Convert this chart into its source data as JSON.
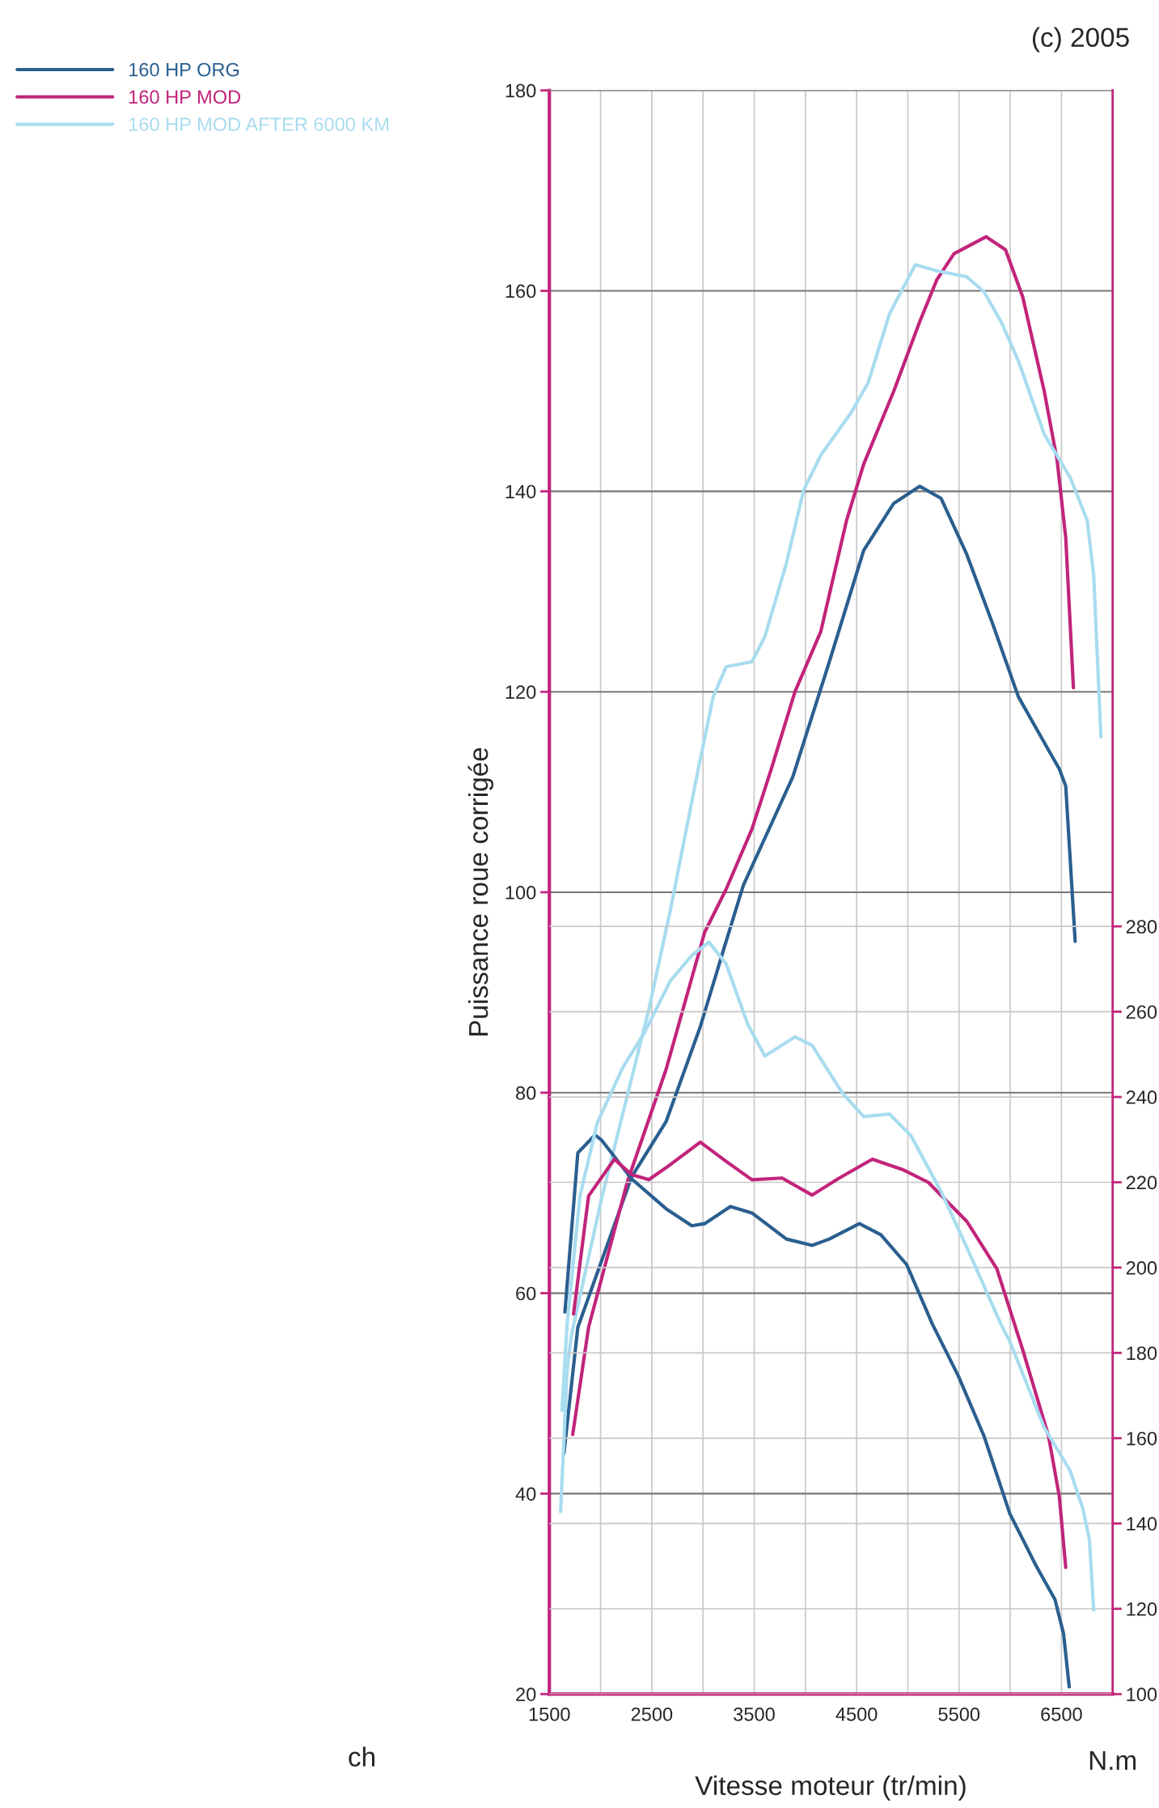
{
  "chart_data": {
    "type": "line",
    "xlabel": "Vitesse moteur (tr/min)",
    "ylabel": "Puissance roue corrigée",
    "y2label": "N.m",
    "annotations": [
      "(c) 2005",
      "ch"
    ],
    "xlim": [
      1500,
      7000
    ],
    "xticks": [
      1500,
      {
        "value": 2000,
        "label": null
      },
      2500,
      {
        "value": 3000,
        "label": null
      },
      3500,
      {
        "value": 4000,
        "label": null
      },
      4500,
      {
        "value": 5000,
        "label": null
      },
      5500,
      {
        "value": 6000,
        "label": null
      },
      6500,
      {
        "value": 7000,
        "label": null
      }
    ],
    "ylim": [
      20,
      180
    ],
    "yticks": [
      20,
      40,
      60,
      80,
      100,
      120,
      140,
      160,
      180
    ],
    "y2lim": [
      100,
      476
    ],
    "y2ticks": [
      100,
      120,
      140,
      160,
      180,
      200,
      220,
      240,
      260,
      280
    ],
    "grid": true,
    "legend": "top left",
    "marker": "none",
    "line_style": "solid",
    "series": [
      {
        "name": "160 HP ORG",
        "color": "#2a5f8f",
        "x": [
          1642,
          1778,
          2303,
          2639,
          2974,
          3226,
          3394,
          3877,
          4234,
          4569,
          4863,
          5115,
          5325,
          5576,
          5828,
          6080,
          6290,
          6479,
          6542,
          6634
        ],
        "values": [
          44,
          56.6,
          71.6,
          77.1,
          86.6,
          95.1,
          100.7,
          111.5,
          123,
          134.1,
          138.8,
          140.5,
          139.3,
          133.7,
          126.8,
          119.5,
          115.7,
          112.3,
          110.6,
          95.1
        ]
      },
      {
        "name": "160 HP MOD",
        "color": "#c2247a",
        "x": [
          1728,
          1883,
          2261,
          2639,
          3016,
          3226,
          3478,
          3667,
          3898,
          4150,
          4402,
          4569,
          4863,
          5115,
          5283,
          5451,
          5765,
          5954,
          6122,
          6332,
          6458,
          6542,
          6617
        ],
        "values": [
          45.9,
          56.6,
          71.1,
          82.3,
          96,
          100.3,
          106.3,
          112.3,
          120,
          126,
          137.1,
          142.7,
          150,
          156.9,
          161.1,
          163.7,
          165.4,
          164.1,
          159.4,
          150,
          143.1,
          135.4,
          120.4
        ]
      },
      {
        "name": "160 HP MOD AFTER 6000 KM",
        "color": "#a8dcef",
        "x": [
          1610,
          1673,
          1715,
          2009,
          2261,
          2471,
          2681,
          2954,
          3100,
          3226,
          3478,
          3604,
          3814,
          3982,
          4150,
          4443,
          4611,
          4821,
          5073,
          5283,
          5577,
          5744,
          5912,
          6080,
          6332,
          6584,
          6752,
          6815,
          6886
        ],
        "values": [
          38.2,
          52.3,
          55.8,
          69.4,
          79.7,
          88.3,
          98.2,
          112.3,
          119.5,
          122.5,
          123,
          125.5,
          132.8,
          140.1,
          143.6,
          147.8,
          150.8,
          157.7,
          162.6,
          162,
          161.4,
          159.9,
          156.9,
          153,
          145.7,
          141.4,
          137.1,
          131.6,
          115.5
        ]
      },
      {
        "axis": "y2",
        "color": "#2a5f8f",
        "x": [
          1652,
          1778,
          1946,
          2009,
          2303,
          2639,
          2891,
          3016,
          3268,
          3478,
          3814,
          4066,
          4234,
          4527,
          4737,
          4989,
          5241,
          5493,
          5744,
          5996,
          6248,
          6437,
          6521,
          6576
        ],
        "values": [
          189.6,
          226.9,
          231.1,
          229.9,
          220.8,
          213.8,
          209.8,
          210.3,
          214.3,
          212.8,
          206.7,
          205.2,
          206.7,
          210.3,
          207.7,
          200.7,
          186.7,
          174.6,
          160.5,
          142.3,
          130.3,
          122.2,
          114.1,
          101.7
        ]
      },
      {
        "axis": "y2",
        "color": "#c2247a",
        "x": [
          1736,
          1883,
          2135,
          2303,
          2471,
          2639,
          2974,
          3226,
          3478,
          3772,
          4066,
          4318,
          4653,
          4947,
          5199,
          5577,
          5870,
          6122,
          6374,
          6479,
          6542
        ],
        "values": [
          189.1,
          216.8,
          225.4,
          221.8,
          220.6,
          223.4,
          229.4,
          224.9,
          220.6,
          221,
          217,
          220.8,
          225.4,
          223,
          220,
          210.8,
          199.7,
          180.7,
          160.5,
          146.4,
          129.7
        ]
      },
      {
        "axis": "y2",
        "color": "#a8dcef",
        "x": [
          1623,
          1673,
          1799,
          1967,
          2219,
          2429,
          2681,
          2891,
          3058,
          3226,
          3436,
          3604,
          3898,
          4066,
          4360,
          4569,
          4821,
          5031,
          5325,
          5577,
          5912,
          5996,
          6332,
          6584,
          6710,
          6773,
          6815
        ],
        "values": [
          166.5,
          186.7,
          216.8,
          233.9,
          247,
          255.1,
          267.2,
          273.2,
          276.3,
          271.2,
          257.1,
          249.6,
          254.1,
          252.1,
          241,
          235.4,
          236,
          230.9,
          217.8,
          204.7,
          186.6,
          182.7,
          162.5,
          152.4,
          143.4,
          136.3,
          119.7
        ]
      }
    ]
  }
}
